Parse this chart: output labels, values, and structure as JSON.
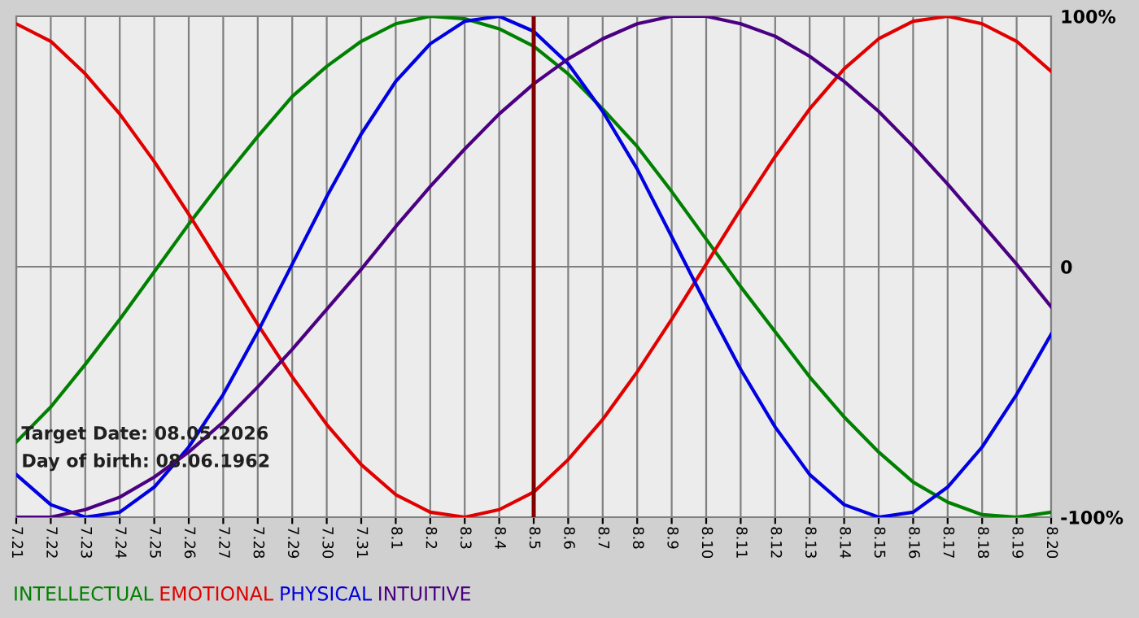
{
  "chart_data": {
    "type": "line",
    "categories": [
      "7.21",
      "7.22",
      "7.23",
      "7.24",
      "7.25",
      "7.26",
      "7.27",
      "7.28",
      "7.29",
      "7.30",
      "7.31",
      "8.1",
      "8.2",
      "8.3",
      "8.4",
      "8.5",
      "8.6",
      "8.7",
      "8.8",
      "8.9",
      "8.10",
      "8.11",
      "8.12",
      "8.13",
      "8.14",
      "8.15",
      "8.16",
      "8.17",
      "8.18",
      "8.19",
      "8.20"
    ],
    "series": [
      {
        "name": "INTELLECTUAL",
        "color": "#008000",
        "values": [
          -70,
          -56,
          -39,
          -21,
          -2,
          17,
          35,
          52,
          68,
          80,
          90,
          97,
          100,
          99,
          95,
          88,
          77,
          63,
          48,
          30,
          11,
          -8,
          -26,
          -44,
          -60,
          -74,
          -86,
          -94,
          -99,
          -100,
          -98
        ]
      },
      {
        "name": "EMOTIONAL",
        "color": "#e00000",
        "values": [
          97,
          90,
          77,
          61,
          42,
          21,
          -1,
          -23,
          -44,
          -63,
          -79,
          -91,
          -98,
          -100,
          -97,
          -90,
          -77,
          -61,
          -42,
          -21,
          1,
          23,
          44,
          63,
          79,
          91,
          98,
          100,
          97,
          90,
          78
        ]
      },
      {
        "name": "PHYSICAL",
        "color": "#0000e0",
        "values": [
          -83,
          -95,
          -100,
          -98,
          -88,
          -72,
          -51,
          -26,
          1,
          28,
          53,
          74,
          89,
          98,
          100,
          94,
          81,
          62,
          39,
          12,
          -15,
          -41,
          -64,
          -83,
          -95,
          -100,
          -98,
          -88,
          -72,
          -51,
          -27
        ]
      },
      {
        "name": "INTUITIVE",
        "color": "#4b0082",
        "values": [
          -100,
          -100,
          -97,
          -92,
          -84,
          -74,
          -62,
          -48,
          -33,
          -17,
          -1,
          16,
          32,
          47,
          61,
          73,
          83,
          91,
          97,
          100,
          100,
          97,
          92,
          84,
          74,
          62,
          48,
          33,
          17,
          1,
          -16
        ]
      }
    ],
    "ylim": [
      -100,
      100
    ],
    "yticks": [
      {
        "value": 100,
        "label": "100%"
      },
      0,
      {
        "value": -100,
        "label": "-100%"
      }
    ],
    "ref_lines": [
      {
        "axis": "x",
        "value": "8.5",
        "color": "#800000"
      }
    ],
    "annotations": [
      "Target Date: 08.05.2026",
      "Day of birth: 08.06.1962"
    ],
    "grid": true,
    "legend": "bottom"
  }
}
